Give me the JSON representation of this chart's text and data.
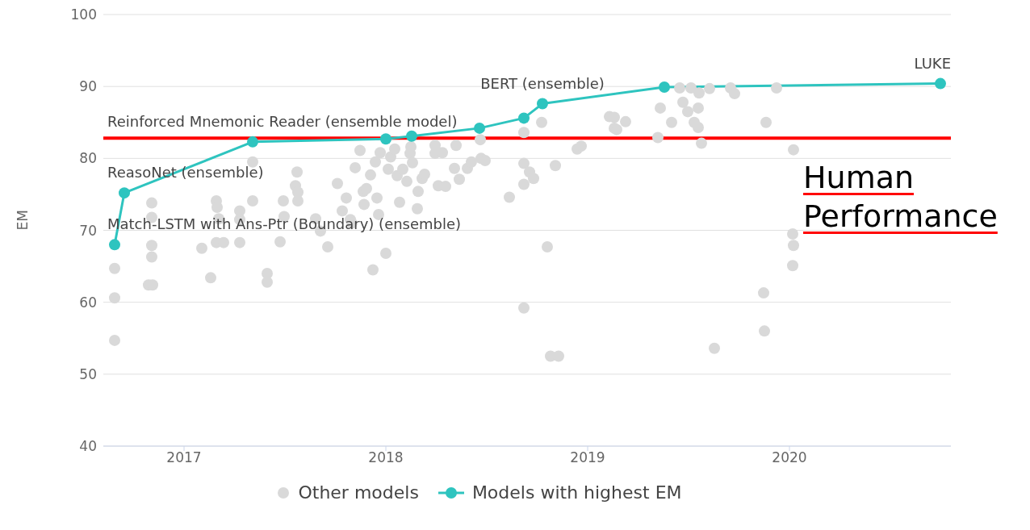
{
  "chart_data": {
    "type": "scatter",
    "ylabel": "EM",
    "xlim": [
      2016.6,
      2020.8
    ],
    "xticks": [
      2017,
      2018,
      2019,
      2020
    ],
    "ylim": [
      40,
      100
    ],
    "yticks": [
      40,
      50,
      60,
      70,
      80,
      90,
      100
    ],
    "grid": "y",
    "legend": "bottom",
    "series": [
      {
        "name": "Other models",
        "color": "#d9d9d9",
        "marker": "circle",
        "x": [
          2016.656,
          2016.656,
          2016.656,
          2016.84,
          2016.84,
          2016.84,
          2016.84,
          2016.824,
          2016.844,
          2017.088,
          2017.132,
          2017.16,
          2017.164,
          2017.172,
          2017.16,
          2017.196,
          2017.276,
          2017.276,
          2017.276,
          2017.34,
          2017.34,
          2017.412,
          2017.412,
          2017.476,
          2017.492,
          2017.496,
          2017.56,
          2017.552,
          2017.564,
          2017.564,
          2017.652,
          2017.676,
          2017.712,
          2017.76,
          2017.784,
          2017.804,
          2017.824,
          2017.832,
          2017.872,
          2017.848,
          2017.888,
          2017.904,
          2017.892,
          2017.924,
          2017.936,
          2017.948,
          2017.956,
          2017.964,
          2017.972,
          2018.0,
          2018.012,
          2018.024,
          2018.044,
          2018.056,
          2018.068,
          2018.084,
          2018.104,
          2018.12,
          2018.124,
          2018.132,
          2018.156,
          2018.16,
          2018.18,
          2018.192,
          2018.244,
          2018.244,
          2018.26,
          2018.28,
          2018.296,
          2018.34,
          2018.348,
          2018.364,
          2018.404,
          2018.424,
          2018.468,
          2018.472,
          2018.492,
          2018.612,
          2018.684,
          2018.684,
          2018.684,
          2018.684,
          2018.712,
          2018.732,
          2018.772,
          2018.8,
          2018.816,
          2018.856,
          2018.84,
          2018.948,
          2018.968,
          2019.108,
          2019.132,
          2019.132,
          2019.144,
          2019.188,
          2019.348,
          2019.36,
          2019.416,
          2019.456,
          2019.472,
          2019.496,
          2019.512,
          2019.528,
          2019.548,
          2019.548,
          2019.564,
          2019.552,
          2019.604,
          2019.628,
          2019.708,
          2019.728,
          2019.884,
          2019.936,
          2019.872,
          2019.876,
          2020.02,
          2020.016,
          2020.02,
          2020.016
        ],
        "values": [
          64.7,
          60.6,
          54.7,
          73.8,
          71.8,
          67.9,
          66.3,
          62.4,
          62.4,
          67.5,
          63.4,
          74.1,
          73.2,
          71.6,
          68.3,
          68.3,
          72.7,
          71.5,
          68.3,
          79.5,
          74.1,
          64.0,
          62.8,
          68.4,
          74.1,
          71.9,
          78.1,
          76.2,
          74.1,
          75.3,
          71.6,
          69.9,
          67.7,
          76.5,
          72.7,
          74.5,
          71.5,
          71.0,
          81.1,
          78.7,
          75.4,
          75.8,
          73.6,
          77.7,
          64.5,
          79.5,
          74.5,
          72.2,
          80.8,
          66.8,
          78.5,
          80.2,
          81.3,
          77.6,
          73.9,
          78.5,
          76.8,
          80.7,
          81.6,
          79.4,
          73.0,
          75.4,
          77.2,
          77.8,
          80.7,
          81.8,
          76.2,
          80.8,
          76.1,
          78.6,
          81.8,
          77.1,
          78.6,
          79.5,
          82.6,
          80.0,
          79.7,
          74.6,
          83.6,
          79.3,
          76.4,
          59.2,
          78.1,
          77.2,
          85.0,
          67.7,
          52.5,
          52.5,
          79.0,
          81.3,
          81.7,
          85.8,
          85.7,
          84.2,
          84.0,
          85.1,
          82.9,
          87.0,
          85.0,
          89.8,
          87.8,
          86.5,
          89.8,
          85.0,
          87.0,
          84.3,
          82.1,
          89.1,
          89.7,
          53.6,
          89.8,
          89.0,
          85.0,
          89.8,
          61.3,
          56.0,
          81.2,
          69.5,
          67.9,
          65.1
        ]
      },
      {
        "name": "Models with highest EM",
        "type": "line",
        "color": "#2ec4bf",
        "marker": "circle",
        "line_style": "solid",
        "x": [
          2016.656,
          2016.704,
          2017.34,
          2018.0,
          2018.128,
          2018.464,
          2018.684,
          2018.776,
          2019.38,
          2020.748
        ],
        "values": [
          68.0,
          75.2,
          82.3,
          82.7,
          83.1,
          84.2,
          85.6,
          87.6,
          89.9,
          90.4
        ]
      }
    ],
    "ref_lines": [
      {
        "axis": "y",
        "value": 82.8,
        "label": "Human Performance",
        "color": "#ff0000",
        "line_style": "solid"
      }
    ],
    "annotations": [
      {
        "text": "Match-LSTM with Ans-Ptr (Boundary) (ensemble)",
        "x": 2016.656,
        "y": 68.0
      },
      {
        "text": "ReasoNet (ensemble)",
        "x": 2016.704,
        "y": 75.2
      },
      {
        "text": "Reinforced Mnemonic Reader (ensemble model)",
        "x": 2017.34,
        "y": 82.3
      },
      {
        "text": "BERT (ensemble)",
        "x": 2018.776,
        "y": 87.6
      },
      {
        "text": "LUKE",
        "x": 2020.748,
        "y": 90.4
      }
    ]
  }
}
